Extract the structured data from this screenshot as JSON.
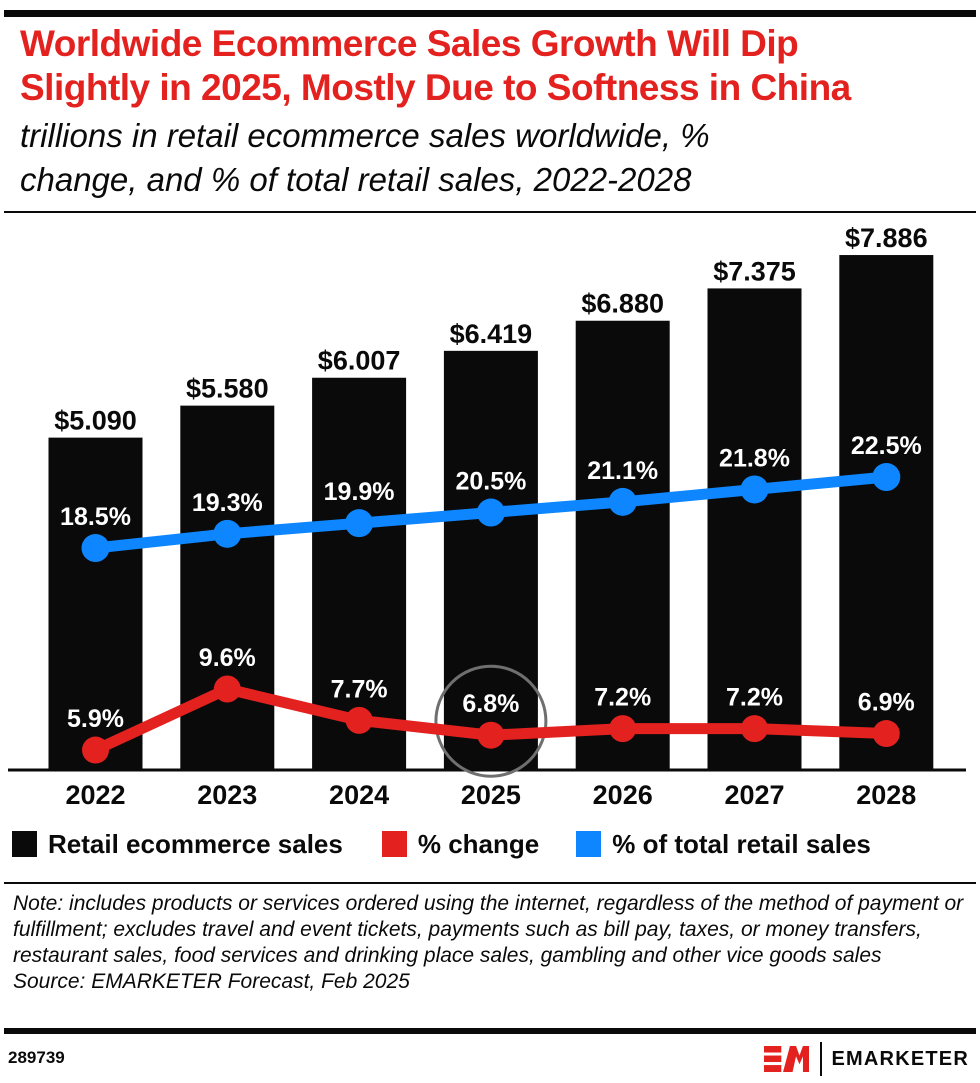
{
  "header": {
    "title_line1": "Worldwide Ecommerce Sales Growth Will Dip",
    "title_line2": "Slightly in 2025, Mostly Due to Softness in China",
    "subtitle_line1": "trillions in retail ecommerce sales worldwide, %",
    "subtitle_line2": "change, and % of total retail sales, 2022-2028"
  },
  "colors": {
    "red": "#e3211f",
    "blue": "#0e86ff",
    "bar_black": "#0a0a0a",
    "annotation_gray": "#6f6f6f"
  },
  "legend": [
    {
      "label": "Retail ecommerce sales",
      "color": "#0a0a0a"
    },
    {
      "label": "% change",
      "color": "#e3211f"
    },
    {
      "label": "% of total retail sales",
      "color": "#0e86ff"
    }
  ],
  "chart_data": {
    "type": "combo",
    "categories": [
      "2022",
      "2023",
      "2024",
      "2025",
      "2026",
      "2027",
      "2028"
    ],
    "series": [
      {
        "name": "Retail ecommerce sales",
        "type": "bar",
        "unit": "USD trillions",
        "color": "#0a0a0a",
        "values": [
          5.09,
          5.58,
          6.007,
          6.419,
          6.88,
          7.375,
          7.886
        ],
        "labels": [
          "$5.090",
          "$5.580",
          "$6.007",
          "$6.419",
          "$6.880",
          "$7.375",
          "$7.886"
        ]
      },
      {
        "name": "% of total retail sales",
        "type": "line",
        "color": "#0e86ff",
        "values": [
          18.5,
          19.3,
          19.9,
          20.5,
          21.1,
          21.8,
          22.5
        ],
        "labels": [
          "18.5%",
          "19.3%",
          "19.9%",
          "20.5%",
          "21.1%",
          "21.8%",
          "22.5%"
        ]
      },
      {
        "name": "% change",
        "type": "line",
        "color": "#e3211f",
        "values": [
          5.9,
          9.6,
          7.7,
          6.8,
          7.2,
          7.2,
          6.9
        ],
        "labels": [
          "5.9%",
          "9.6%",
          "7.7%",
          "6.8%",
          "7.2%",
          "7.2%",
          "6.9%"
        ]
      }
    ],
    "annotation": {
      "shape": "circle",
      "series": "% change",
      "category": "2025",
      "value_label": "6.8%",
      "color": "#6f6f6f"
    },
    "xlabel": "",
    "ylabel": "",
    "grid": false,
    "legend_position": "bottom"
  },
  "footer": {
    "note": "Note: includes products or services ordered using the internet, regardless of the method of payment or fulfillment; excludes travel and event tickets, payments such as bill pay, taxes, or money transfers, restaurant sales, food services and drinking place sales, gambling and other vice goods sales",
    "source": "Source: EMARKETER Forecast, Feb 2025",
    "chart_id": "289739",
    "brand": "EMARKETER"
  }
}
